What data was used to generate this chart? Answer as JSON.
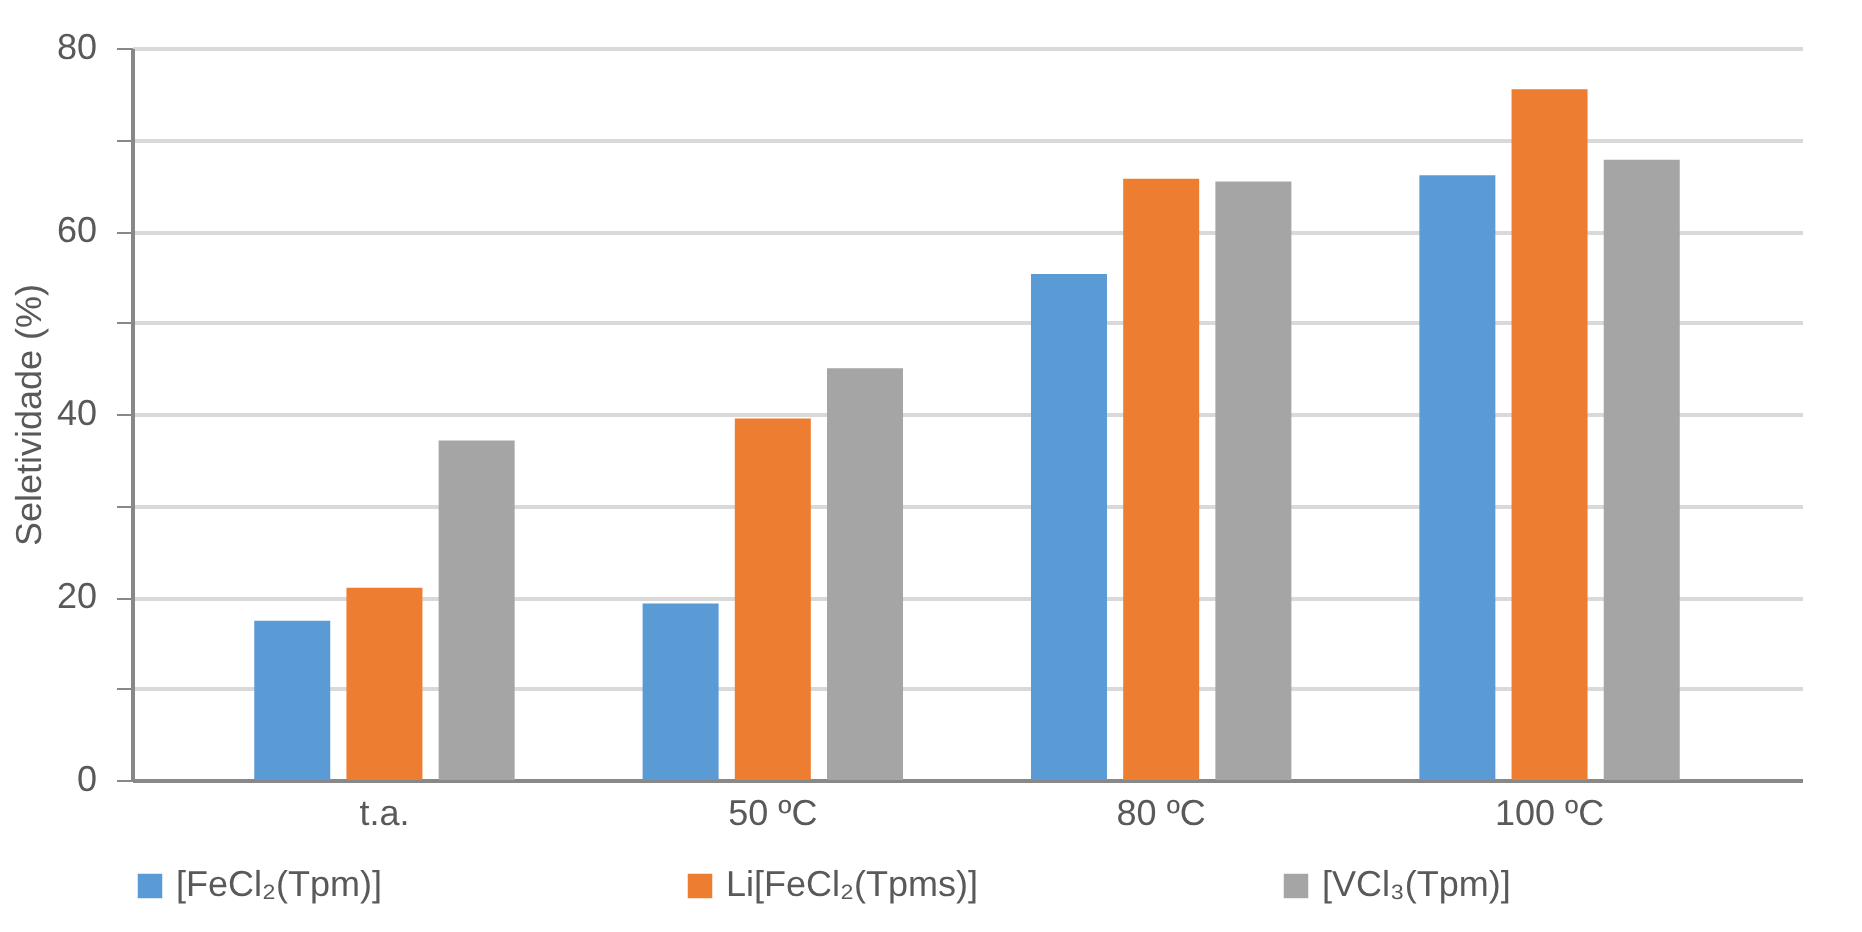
{
  "chart_data": {
    "type": "bar",
    "ylabel": "Seletividade (%)",
    "categories": [
      "t.a.",
      "50 ºC",
      "80 ºC",
      "100 ºC"
    ],
    "series": [
      {
        "name": "[FeCl₂(Tpm)]",
        "color": "#5b9bd5",
        "values": [
          17.4,
          19.3,
          55.3,
          66.1
        ]
      },
      {
        "name": "Li[FeCl₂(Tpms)]",
        "color": "#ed7d31",
        "values": [
          21.0,
          39.5,
          65.7,
          75.5
        ]
      },
      {
        "name": "[VCl₃(Tpm)]",
        "color": "#a5a5a5",
        "values": [
          37.1,
          45.0,
          65.4,
          67.8
        ]
      }
    ],
    "ylim": [
      0,
      80
    ],
    "yticks": [
      0,
      {
        "value": 10,
        "label": null
      },
      20,
      {
        "value": 30,
        "label": null
      },
      40,
      {
        "value": 50,
        "label": null
      },
      60,
      {
        "value": 70,
        "label": null
      },
      80
    ],
    "grid": "y",
    "legend": "bottom"
  }
}
